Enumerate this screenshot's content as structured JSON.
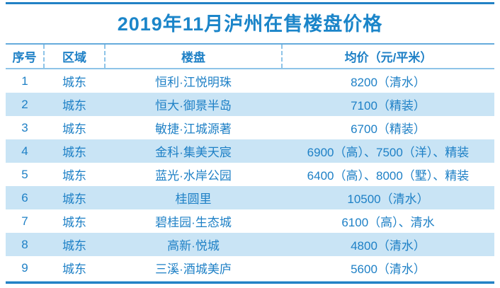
{
  "title": "2019年11月泸州在售楼盘价格",
  "colors": {
    "title_blue": "#1b85c9",
    "body_text_blue": "#1e80c6",
    "alt_row_bg": "#c9e4f5",
    "rule_blue": "#2281c5",
    "header_border_blue": "#66abdc",
    "dashed_divider_blue": "#8ec4e8"
  },
  "chart_data": {
    "type": "table",
    "title": "2019年11月泸州在售楼盘价格",
    "columns": [
      "序号",
      "区域",
      "楼盘",
      "均价（元/平米）"
    ],
    "column_keys": [
      "index",
      "district",
      "property",
      "avg-price"
    ],
    "rows": [
      [
        "1",
        "城东",
        "恒利·江悦明珠",
        "8200（清水）"
      ],
      [
        "2",
        "城东",
        "恒大·御景半岛",
        "7100（精装）"
      ],
      [
        "3",
        "城东",
        "敏捷·江城源著",
        "6700（精装）"
      ],
      [
        "4",
        "城东",
        "金科·集美天宸",
        "6900（高）、7500（洋）、精装"
      ],
      [
        "5",
        "城东",
        "蓝光·水岸公园",
        "6400（高）、8000（墅）、精装"
      ],
      [
        "6",
        "城东",
        "桂圆里",
        "10500（清水）"
      ],
      [
        "7",
        "城东",
        "碧桂园·生态城",
        "6100（高）、清水"
      ],
      [
        "8",
        "城东",
        "高新·悦城",
        "4800（清水）"
      ],
      [
        "9",
        "城东",
        "三溪·酒城美庐",
        "5600（清水）"
      ]
    ],
    "layout_hints": {
      "striped_rows": "even rows light blue",
      "header_dividers": "dashed vertical, header only",
      "outer_rules": "thick blue line above title and below last row"
    }
  }
}
